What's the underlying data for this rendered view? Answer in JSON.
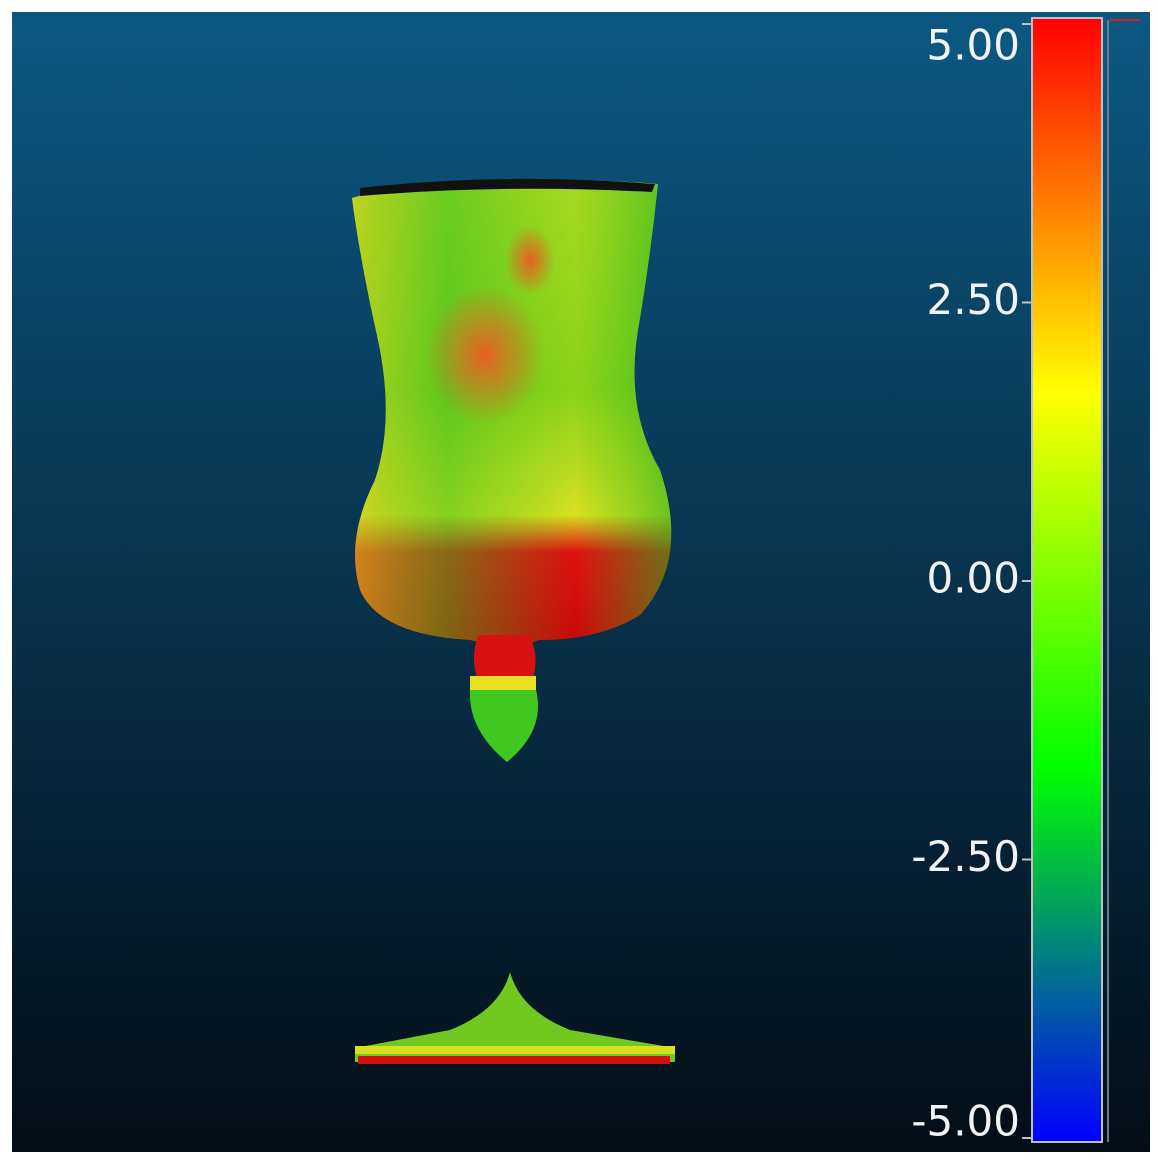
{
  "color_scale": {
    "range": [
      -5,
      5
    ],
    "ticks": [
      {
        "value": 5,
        "label": "5.00"
      },
      {
        "value": 2.5,
        "label": "2.50"
      },
      {
        "value": 0,
        "label": "0.00"
      },
      {
        "value": -2.5,
        "label": "-2.50"
      },
      {
        "value": -5,
        "label": "-5.00"
      }
    ],
    "colors": [
      "#0000ff",
      "#00ff00",
      "#ffff00",
      "#ff0000"
    ]
  }
}
